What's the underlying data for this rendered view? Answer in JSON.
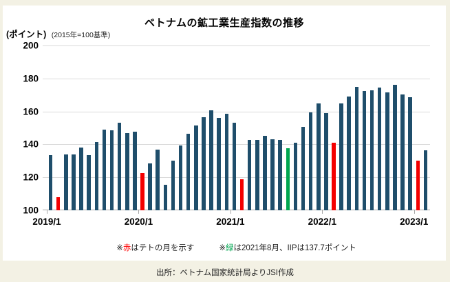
{
  "page": {
    "background_color": "#f3f1e4",
    "panel_color": "#ffffff"
  },
  "header": {
    "title": "ベトナムの鉱工業生産指数の推移",
    "unit_label": "(ポイント)",
    "basis_label": "(2015年=100基準)"
  },
  "footnotes": {
    "note1": {
      "prefix": "※",
      "highlight": "赤",
      "highlight_color": "#ff0000",
      "rest": "はテトの月を示す"
    },
    "note2": {
      "prefix": "※",
      "highlight": "緑",
      "highlight_color": "#00a650",
      "rest": "は2021年8月、IIPは137.7ポイント"
    }
  },
  "source": "出所：ベトナム国家統計局よりJSI作成",
  "chart_data": {
    "type": "bar",
    "title": "ベトナムの鉱工業生産指数の推移",
    "unit": "ポイント",
    "baseline": "2015年=100",
    "ylim": [
      100,
      200
    ],
    "y_ticks": [
      100,
      120,
      140,
      160,
      180,
      200
    ],
    "x_tick_labels": [
      "2019/1",
      "2020/1",
      "2021/1",
      "2022/1",
      "2023/1"
    ],
    "grid": true,
    "legend": "none",
    "categories": [
      "2019/1",
      "2019/2",
      "2019/3",
      "2019/4",
      "2019/5",
      "2019/6",
      "2019/7",
      "2019/8",
      "2019/9",
      "2019/10",
      "2019/11",
      "2019/12",
      "2020/1",
      "2020/2",
      "2020/3",
      "2020/4",
      "2020/5",
      "2020/6",
      "2020/7",
      "2020/8",
      "2020/9",
      "2020/10",
      "2020/11",
      "2020/12",
      "2021/1",
      "2021/2",
      "2021/3",
      "2021/4",
      "2021/5",
      "2021/6",
      "2021/7",
      "2021/8",
      "2021/9",
      "2021/10",
      "2021/11",
      "2021/12",
      "2022/1",
      "2022/2",
      "2022/3",
      "2022/4",
      "2022/5",
      "2022/6",
      "2022/7",
      "2022/8",
      "2022/9",
      "2022/10",
      "2022/11",
      "2022/12",
      "2023/1",
      "2023/2"
    ],
    "values": [
      133.5,
      108,
      134,
      134,
      138,
      133.5,
      141.5,
      149,
      148.5,
      153,
      147,
      147.5,
      122.5,
      128.5,
      137,
      115.5,
      130,
      139.5,
      146.5,
      151.5,
      156.5,
      160.5,
      156,
      158.5,
      153,
      119,
      142.5,
      142.5,
      145,
      143,
      142.5,
      137.7,
      141,
      150.5,
      159.5,
      165,
      159,
      141,
      165,
      169,
      175,
      172.5,
      173,
      174.5,
      171.5,
      176,
      170.5,
      168.5,
      130,
      136.5
    ],
    "point_styles": [
      "default",
      "tet",
      "default",
      "default",
      "default",
      "default",
      "default",
      "default",
      "default",
      "default",
      "default",
      "default",
      "tet",
      "default",
      "default",
      "default",
      "default",
      "default",
      "default",
      "default",
      "default",
      "default",
      "default",
      "default",
      "default",
      "tet",
      "default",
      "default",
      "default",
      "default",
      "default",
      "highlight",
      "default",
      "default",
      "default",
      "default",
      "default",
      "tet",
      "default",
      "default",
      "default",
      "default",
      "default",
      "default",
      "default",
      "default",
      "default",
      "default",
      "tet",
      "default"
    ],
    "palette": {
      "default": "#1f4e6b",
      "tet": "#f40000",
      "highlight": "#00a650"
    },
    "annotations": [
      "赤はテトの月を示す",
      "緑は2021年8月、IIPは137.7ポイント"
    ]
  }
}
